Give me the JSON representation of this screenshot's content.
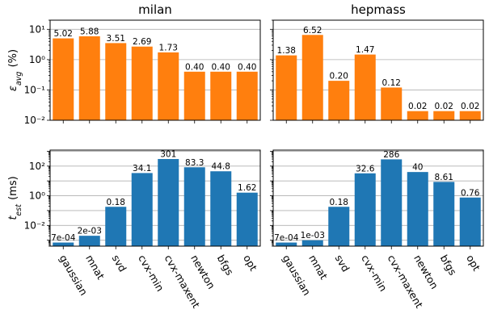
{
  "chart_data": [
    {
      "type": "bar",
      "title": "milan",
      "ylabel": "ε_avg (%)",
      "ylog": true,
      "ylim": [
        0.01,
        20
      ],
      "yticks": [
        {
          "v": 10,
          "label": "10¹"
        },
        {
          "v": 1,
          "label": "10⁰"
        },
        {
          "v": 0.1,
          "label": "10⁻¹"
        },
        {
          "v": 0.01,
          "label": "10⁻²"
        }
      ],
      "color": "#ff7f0e",
      "categories": [
        "gaussian",
        "mnat",
        "svd",
        "cvx-min",
        "cvx-maxent",
        "newton",
        "bfgs",
        "opt"
      ],
      "values": [
        5.02,
        5.88,
        3.51,
        2.69,
        1.73,
        0.4,
        0.4,
        0.4
      ],
      "labels": [
        "5.02",
        "5.88",
        "3.51",
        "2.69",
        "1.73",
        "0.40",
        "0.40",
        "0.40"
      ],
      "grid": "y"
    },
    {
      "type": "bar",
      "title": "hepmass",
      "ylabel": "",
      "ylog": true,
      "ylim": [
        0.01,
        20
      ],
      "color": "#ff7f0e",
      "categories": [
        "gaussian",
        "mnat",
        "svd",
        "cvx-min",
        "cvx-maxent",
        "newton",
        "bfgs",
        "opt"
      ],
      "values": [
        1.38,
        6.52,
        0.2,
        1.47,
        0.12,
        0.02,
        0.02,
        0.02
      ],
      "labels": [
        "1.38",
        "6.52",
        "0.20",
        "1.47",
        "0.12",
        "0.02",
        "0.02",
        "0.02"
      ],
      "grid": "y"
    },
    {
      "type": "bar",
      "title": "",
      "ylabel": "t_est (ms)",
      "ylog": true,
      "ylim": [
        0.0004,
        1200
      ],
      "yticks": [
        {
          "v": 100,
          "label": "10²"
        },
        {
          "v": 1,
          "label": "10⁰"
        },
        {
          "v": 0.01,
          "label": "10⁻²"
        }
      ],
      "color": "#1f77b4",
      "categories": [
        "gaussian",
        "mnat",
        "svd",
        "cvx-min",
        "cvx-maxent",
        "newton",
        "bfgs",
        "opt"
      ],
      "values": [
        0.0007,
        0.002,
        0.18,
        34.1,
        301,
        83.3,
        44.8,
        1.62
      ],
      "labels": [
        "7e-04",
        "2e-03",
        "0.18",
        "34.1",
        "301",
        "83.3",
        "44.8",
        "1.62"
      ],
      "grid": "y"
    },
    {
      "type": "bar",
      "title": "",
      "ylabel": "",
      "ylog": true,
      "ylim": [
        0.0004,
        1200
      ],
      "color": "#1f77b4",
      "categories": [
        "gaussian",
        "mnat",
        "svd",
        "cvx-min",
        "cvx-maxent",
        "newton",
        "bfgs",
        "opt"
      ],
      "values": [
        0.0007,
        0.001,
        0.18,
        32.6,
        286,
        40,
        8.61,
        0.76
      ],
      "labels": [
        "7e-04",
        "1e-03",
        "0.18",
        "32.6",
        "286",
        "40",
        "8.61",
        "0.76"
      ],
      "grid": "y"
    }
  ]
}
